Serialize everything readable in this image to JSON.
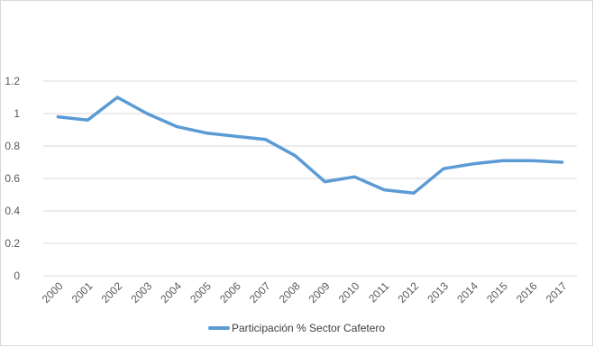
{
  "chart_data": {
    "type": "line",
    "x": [
      "2000",
      "2001",
      "2002",
      "2003",
      "2004",
      "2005",
      "2006",
      "2007",
      "2008",
      "2009",
      "2010",
      "2011",
      "2012",
      "2013",
      "2014",
      "2015",
      "2016",
      "2017"
    ],
    "series": [
      {
        "name": "Participación % Sector Cafetero",
        "values": [
          0.98,
          0.96,
          1.1,
          1.0,
          0.92,
          0.88,
          0.86,
          0.84,
          0.74,
          0.58,
          0.61,
          0.53,
          0.51,
          0.66,
          0.69,
          0.71,
          0.71,
          0.7
        ],
        "color": "#5b9bd5"
      }
    ],
    "y_ticks": [
      "0",
      "0.2",
      "0.4",
      "0.6",
      "0.8",
      "1",
      "1.2"
    ],
    "ylim": [
      0,
      1.2
    ],
    "grid": true,
    "legend": "bottom",
    "title": "",
    "xlabel": "",
    "ylabel": ""
  },
  "colors": {
    "series": "#5b9bd5",
    "grid": "#d9d9d9",
    "axis_text": "#595959"
  }
}
